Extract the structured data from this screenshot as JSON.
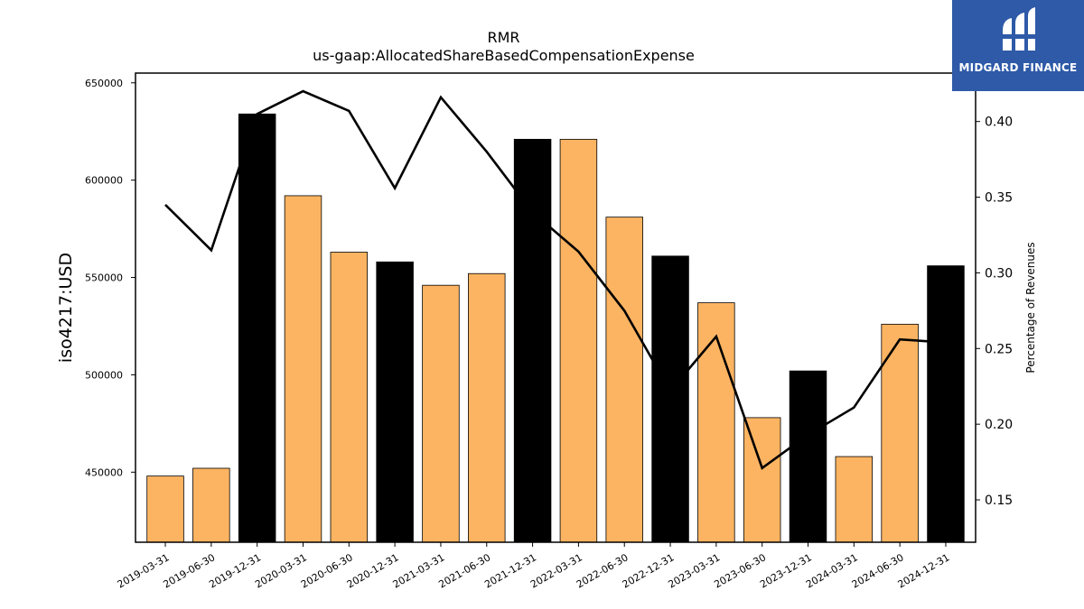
{
  "chart_data": {
    "type": "bar",
    "title": "RMR",
    "subtitle": "us-gaap:AllocatedShareBasedCompensationExpense",
    "ylabel": "iso4217:USD",
    "y2label": "Percentage of Revenues",
    "categories": [
      "2019-03-31",
      "2019-06-30",
      "2019-12-31",
      "2020-03-31",
      "2020-06-30",
      "2020-12-31",
      "2021-03-31",
      "2021-06-30",
      "2021-12-31",
      "2022-03-31",
      "2022-06-30",
      "2022-12-31",
      "2023-03-31",
      "2023-06-30",
      "2023-12-31",
      "2024-03-31",
      "2024-06-30",
      "2024-12-31"
    ],
    "series": [
      {
        "kind": "bar",
        "axis": "left",
        "values": [
          448000,
          452000,
          634000,
          592000,
          563000,
          558000,
          546000,
          552000,
          621000,
          621000,
          581000,
          561000,
          537000,
          478000,
          502000,
          458000,
          526000,
          556000
        ],
        "highlight": [
          false,
          false,
          true,
          false,
          false,
          true,
          false,
          false,
          true,
          false,
          false,
          true,
          false,
          false,
          true,
          false,
          false,
          true
        ]
      },
      {
        "kind": "line",
        "axis": "right",
        "values": [
          0.345,
          0.315,
          0.405,
          0.42,
          0.407,
          0.356,
          0.416,
          0.38,
          0.34,
          0.314,
          0.275,
          0.222,
          0.258,
          0.171,
          0.193,
          0.211,
          0.256,
          0.254
        ]
      }
    ],
    "ylim": [
      414000,
      655000
    ],
    "y2lim": [
      0.122,
      0.432
    ],
    "yticks": [
      450000,
      500000,
      550000,
      600000,
      650000
    ],
    "y2ticks": [
      0.15,
      0.2,
      0.25,
      0.3,
      0.35,
      0.4
    ],
    "y2tick_labels": [
      "0.15",
      "0.20",
      "0.25",
      "0.30",
      "0.35",
      "0.40"
    ],
    "grid": false,
    "colors": {
      "bar": "#fdb462",
      "bar_highlight": "#000000",
      "line": "#000000"
    }
  },
  "logo": {
    "name": "MIDGARD FINANCE",
    "color": "#2e5aa8"
  }
}
